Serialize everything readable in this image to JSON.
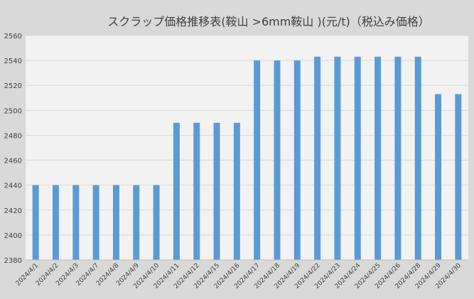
{
  "chart_data": {
    "type": "bar",
    "title": "スクラップ価格推移表(鞍山 >6mm鞍山 )(元/t)（税込み価格）",
    "xlabel": "",
    "ylabel": "",
    "categories": [
      "2024/4/1",
      "2024/4/2",
      "2024/4/3",
      "2024/4/7",
      "2024/4/8",
      "2024/4/9",
      "2024/4/10",
      "2024/4/11",
      "2024/4/12",
      "2024/4/15",
      "2024/4/16",
      "2024/4/17",
      "2024/4/18",
      "2024/4/19",
      "2024/4/22",
      "2024/4/23",
      "2024/4/24",
      "2024/4/25",
      "2024/4/26",
      "2024/4/28",
      "2024/4/29",
      "2024/4/30"
    ],
    "values": [
      2440,
      2440,
      2440,
      2440,
      2440,
      2440,
      2440,
      2490,
      2490,
      2490,
      2490,
      2540,
      2540,
      2540,
      2543,
      2543,
      2543,
      2543,
      2543,
      2543,
      2513,
      2513
    ],
    "ylim": [
      2380,
      2560
    ],
    "yticks": [
      2380,
      2400,
      2420,
      2440,
      2460,
      2480,
      2500,
      2520,
      2540,
      2560
    ],
    "grid": true,
    "legend": "none",
    "colors": {
      "bar": "#5b9bd5",
      "plot_background": "#f2f2f2",
      "background": "#d9d9d9",
      "gridline": "#d9d9d9",
      "text": "#404040"
    }
  }
}
